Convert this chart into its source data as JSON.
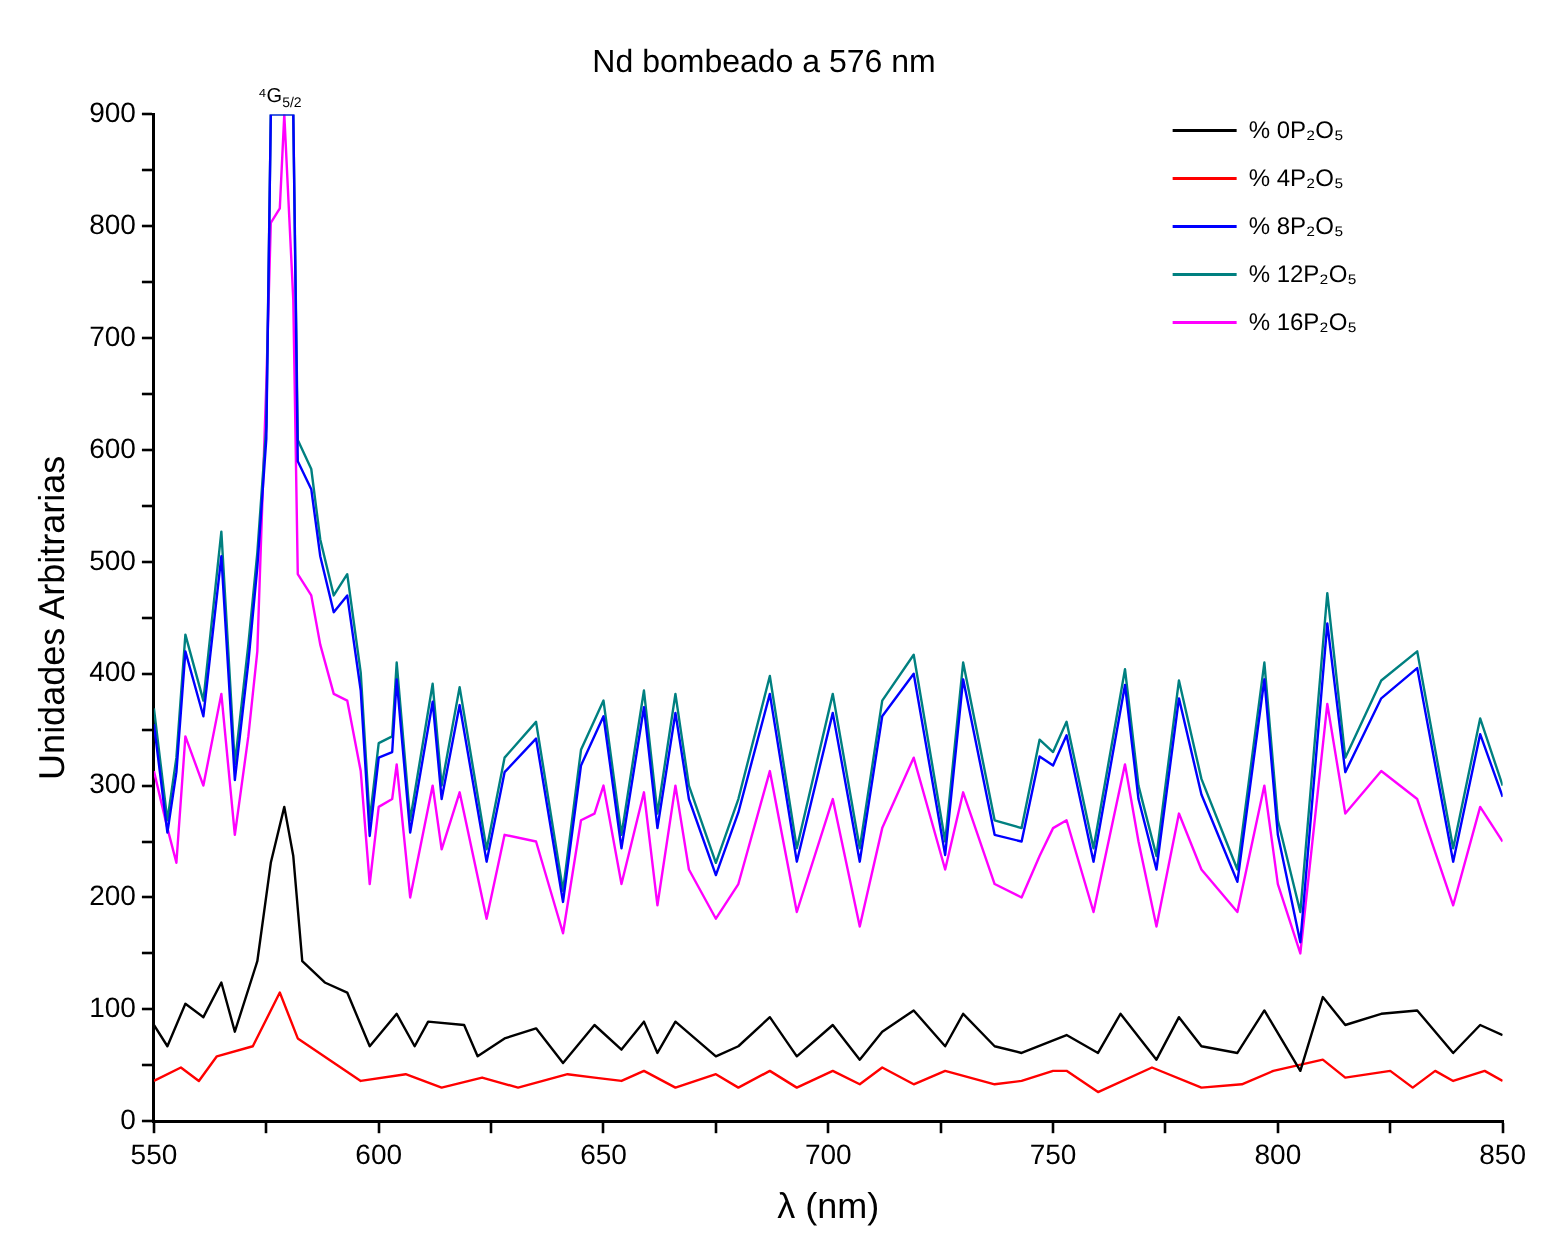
{
  "chart_data": {
    "type": "line",
    "title": "Nd bombeado a 576 nm",
    "xlabel": "λ (nm)",
    "ylabel": "Unidades Arbitrarias",
    "xlim": [
      550,
      850
    ],
    "ylim": [
      0,
      900
    ],
    "xticks": [
      550,
      {
        "value": 575,
        "label": null
      },
      600,
      {
        "value": 625,
        "label": null
      },
      650,
      {
        "value": 675,
        "label": null
      },
      700,
      {
        "value": 725,
        "label": null
      },
      750,
      {
        "value": 775,
        "label": null
      },
      800,
      {
        "value": 825,
        "label": null
      },
      850
    ],
    "yticks": [
      0,
      {
        "value": 50,
        "label": null
      },
      100,
      {
        "value": 150,
        "label": null
      },
      200,
      {
        "value": 250,
        "label": null
      },
      300,
      {
        "value": 350,
        "label": null
      },
      400,
      {
        "value": 450,
        "label": null
      },
      500,
      {
        "value": 550,
        "label": null
      },
      600,
      {
        "value": 650,
        "label": null
      },
      700,
      {
        "value": 750,
        "label": null
      },
      800,
      {
        "value": 850,
        "label": null
      },
      900
    ],
    "grid": false,
    "legend": "top right",
    "marker": "none",
    "line_style": "solid",
    "annotations": [
      {
        "text": "⁴G$_{5/2}$",
        "x": 578,
        "y": 900
      }
    ],
    "series": [
      {
        "name": "% 0P₂O₅",
        "color": "#000000",
        "x": [
          550,
          553,
          557,
          561,
          565,
          568,
          573,
          576,
          579,
          581,
          583,
          588,
          593,
          598,
          604,
          608,
          611,
          619,
          622,
          628,
          635,
          641,
          648,
          654,
          659,
          662,
          666,
          675,
          680,
          687,
          693,
          701,
          707,
          712,
          719,
          726,
          730,
          737,
          743,
          753,
          760,
          765,
          773,
          778,
          783,
          791,
          797,
          805,
          810,
          815,
          823,
          831,
          839,
          845,
          850
        ],
        "values": [
          86,
          67,
          105,
          93,
          124,
          80,
          143,
          231,
          281,
          237,
          143,
          124,
          115,
          67,
          96,
          67,
          89,
          86,
          58,
          74,
          83,
          52,
          86,
          64,
          89,
          61,
          89,
          58,
          67,
          93,
          58,
          86,
          55,
          80,
          99,
          67,
          96,
          67,
          61,
          77,
          61,
          96,
          55,
          93,
          67,
          61,
          99,
          45,
          111,
          86,
          96,
          99,
          61,
          86,
          77
        ]
      },
      {
        "name": "% 4P₂O₅",
        "color": "#ff0000",
        "x": [
          550,
          556,
          560,
          564,
          572,
          578,
          582,
          589,
          596,
          606,
          614,
          623,
          631,
          642,
          648,
          654,
          659,
          666,
          675,
          680,
          687,
          693,
          701,
          707,
          712,
          719,
          726,
          737,
          743,
          750,
          753,
          760,
          772,
          783,
          792,
          799,
          810,
          815,
          825,
          830,
          835,
          839,
          846,
          850
        ],
        "values": [
          36,
          48,
          36,
          58,
          67,
          115,
          74,
          55,
          36,
          42,
          30,
          39,
          30,
          42,
          39,
          36,
          45,
          30,
          42,
          30,
          45,
          30,
          45,
          33,
          48,
          33,
          45,
          33,
          36,
          45,
          45,
          26,
          48,
          30,
          33,
          45,
          55,
          39,
          45,
          30,
          45,
          36,
          45,
          36
        ]
      },
      {
        "name": "% 8P₂O₅",
        "color": "#0000ff",
        "x": [
          550,
          553,
          555,
          557,
          561,
          565,
          568,
          571,
          573,
          575,
          576,
          578,
          580,
          581,
          582,
          585,
          587,
          590,
          593,
          596,
          598,
          600,
          603,
          604,
          607,
          612,
          614,
          618,
          624,
          628,
          635,
          641,
          645,
          650,
          654,
          659,
          662,
          666,
          669,
          675,
          680,
          687,
          693,
          701,
          707,
          712,
          719,
          726,
          730,
          737,
          743,
          747,
          750,
          753,
          759,
          766,
          769,
          773,
          778,
          783,
          791,
          797,
          800,
          805,
          811,
          815,
          823,
          831,
          839,
          845,
          850
        ],
        "values": [
          355,
          258,
          312,
          420,
          362,
          505,
          305,
          410,
          495,
          610,
          900,
          900,
          900,
          900,
          590,
          565,
          505,
          455,
          470,
          385,
          255,
          325,
          330,
          395,
          258,
          375,
          288,
          372,
          232,
          312,
          342,
          196,
          318,
          362,
          244,
          370,
          262,
          365,
          288,
          220,
          276,
          382,
          232,
          365,
          232,
          362,
          400,
          238,
          395,
          256,
          250,
          326,
          318,
          345,
          232,
          390,
          288,
          225,
          378,
          292,
          214,
          395,
          256,
          160,
          445,
          312,
          378,
          405,
          232,
          346,
          290
        ]
      },
      {
        "name": "% 12P₂O₅",
        "color": "#008080",
        "x": [
          550,
          553,
          555,
          557,
          561,
          565,
          568,
          571,
          573,
          575,
          576,
          578,
          580,
          581,
          582,
          585,
          587,
          590,
          593,
          596,
          598,
          600,
          603,
          604,
          607,
          612,
          614,
          618,
          624,
          628,
          635,
          641,
          645,
          650,
          654,
          659,
          662,
          666,
          669,
          675,
          680,
          687,
          693,
          701,
          707,
          712,
          719,
          726,
          730,
          737,
          743,
          747,
          750,
          753,
          759,
          766,
          769,
          773,
          778,
          783,
          791,
          797,
          800,
          805,
          811,
          815,
          823,
          831,
          839,
          845,
          850
        ],
        "values": [
          369,
          269,
          325,
          435,
          376,
          527,
          319,
          426,
          508,
          621,
          900,
          900,
          900,
          900,
          609,
          583,
          520,
          470,
          489,
          401,
          269,
          338,
          344,
          410,
          269,
          391,
          300,
          388,
          243,
          325,
          357,
          206,
          332,
          376,
          256,
          385,
          275,
          382,
          300,
          231,
          288,
          398,
          244,
          382,
          244,
          376,
          417,
          250,
          410,
          269,
          262,
          341,
          330,
          357,
          244,
          404,
          300,
          237,
          394,
          306,
          225,
          410,
          269,
          187,
          472,
          325,
          394,
          420,
          244,
          360,
          300
        ]
      },
      {
        "name": "% 16P₂O₅",
        "color": "#ff00ff",
        "x": [
          550,
          553,
          555,
          557,
          561,
          565,
          568,
          571,
          573,
          575,
          576,
          578,
          579,
          581,
          582,
          585,
          587,
          590,
          593,
          596,
          598,
          600,
          603,
          604,
          607,
          612,
          614,
          618,
          624,
          628,
          635,
          641,
          645,
          648,
          650,
          654,
          659,
          662,
          666,
          669,
          675,
          680,
          687,
          693,
          701,
          707,
          712,
          719,
          726,
          730,
          737,
          743,
          747,
          750,
          753,
          759,
          766,
          769,
          773,
          778,
          783,
          791,
          797,
          800,
          805,
          811,
          815,
          823,
          831,
          839,
          845,
          850
        ],
        "values": [
          313,
          262,
          231,
          344,
          300,
          382,
          256,
          344,
          420,
          659,
          803,
          816,
          900,
          734,
          489,
          470,
          426,
          382,
          376,
          313,
          212,
          281,
          288,
          319,
          200,
          300,
          243,
          294,
          181,
          256,
          250,
          168,
          269,
          275,
          300,
          212,
          294,
          193,
          300,
          225,
          181,
          212,
          313,
          187,
          288,
          174,
          262,
          325,
          225,
          294,
          212,
          200,
          237,
          262,
          269,
          187,
          319,
          250,
          174,
          275,
          225,
          187,
          300,
          212,
          150,
          373,
          275,
          313,
          288,
          193,
          281,
          250
        ]
      }
    ]
  }
}
